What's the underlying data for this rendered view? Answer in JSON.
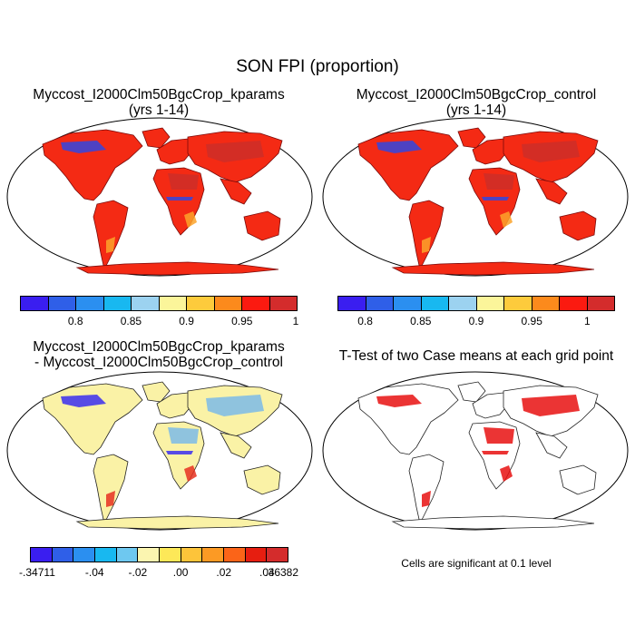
{
  "title": "SON FPI (proportion)",
  "panels": [
    {
      "id": "kparams",
      "title_line1": "Myccost_I2000Clm50BgcCrop_kparams",
      "title_line2": "(yrs 1-14)"
    },
    {
      "id": "control",
      "title_line1": "Myccost_I2000Clm50BgcCrop_control",
      "title_line2": "(yrs 1-14)"
    },
    {
      "id": "diff",
      "title_line1": "Myccost_I2000Clm50BgcCrop_kparams",
      "title_line2": "- Myccost_I2000Clm50BgcCrop_control"
    },
    {
      "id": "ttest",
      "title_line1": "T-Test of two Case means at each grid point",
      "title_line2": ""
    }
  ],
  "colorbar_top": {
    "colors": [
      "#3a1ef0",
      "#2f5fe8",
      "#2b8ff0",
      "#18b8f0",
      "#9cd2f0",
      "#fbf59a",
      "#fdcb3c",
      "#fc8a1c",
      "#fb1a10",
      "#d42c2c"
    ],
    "ticks": [
      "0.8",
      "0.85",
      "0.9",
      "0.95",
      "1"
    ]
  },
  "colorbar_diff": {
    "colors": [
      "#3a1ef0",
      "#2f5fe8",
      "#2b8ff0",
      "#18b8f0",
      "#6ec8f0",
      "#fbf5b0",
      "#fde858",
      "#fdc43a",
      "#fc9a24",
      "#fb6418",
      "#e61e10",
      "#d42c2c"
    ],
    "ticks": [
      "-.34711",
      "-.04",
      "-.02",
      ".00",
      ".02",
      ".04",
      ".36382"
    ]
  },
  "ttest_note": "Cells are significant at 0.1 level",
  "map_colors": {
    "kparams": {
      "land": "#f42a14",
      "patch_dark": "#cc2e28",
      "patch_blue": "#3046e0",
      "patch_orange": "#fca32a",
      "coast": "#7a0a0a"
    },
    "control": {
      "land": "#f42a14",
      "patch_dark": "#cc2e28",
      "patch_blue": "#3046e0",
      "patch_orange": "#fca32a",
      "coast": "#7a0a0a"
    },
    "diff": {
      "land": "#faf2a6",
      "patch_dark": "#7bbbe8",
      "patch_blue": "#3a2ef0",
      "patch_orange": "#e63020",
      "coast": "#222222"
    },
    "ttest": {
      "land": "#ffffff",
      "patch_dark": "#e81010",
      "patch_blue": "#e81010",
      "patch_orange": "#e81010",
      "coast": "#222222"
    }
  }
}
